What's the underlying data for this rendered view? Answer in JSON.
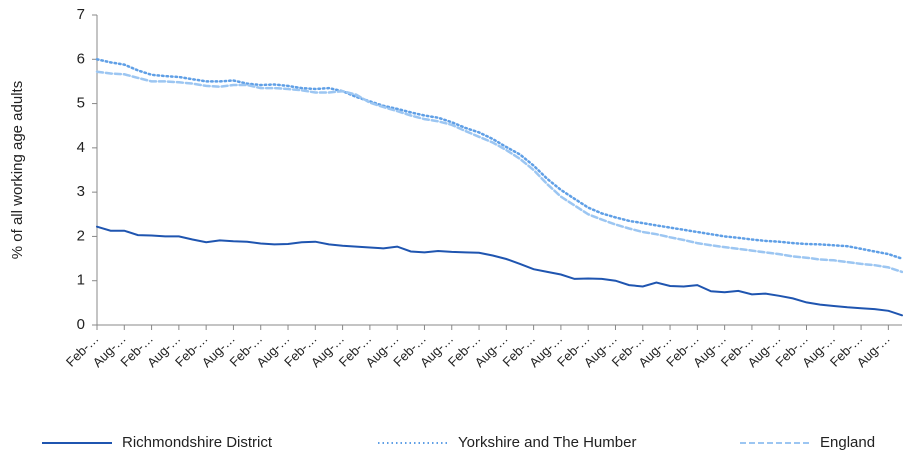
{
  "chart_data": {
    "type": "line",
    "y_label": "% of all working age adults",
    "categories": [
      "Feb-…",
      null,
      "Aug-…",
      null,
      "Feb-…",
      null,
      "Aug-…",
      null,
      "Feb-…",
      null,
      "Aug-…",
      null,
      "Feb-…",
      null,
      "Aug-…",
      null,
      "Feb-…",
      null,
      "Aug-…",
      null,
      "Feb-…",
      null,
      "Aug-…",
      null,
      "Feb-…",
      null,
      "Aug-…",
      null,
      "Feb-…",
      null,
      "Aug-…",
      null,
      "Feb-…",
      null,
      "Aug-…",
      null,
      "Feb-…",
      null,
      "Aug-…",
      null,
      "Feb-…",
      null,
      "Aug-…",
      null,
      "Feb-…",
      null,
      "Aug-…",
      null,
      "Feb-…",
      null,
      "Aug-…",
      null,
      "Feb-…",
      null,
      "Aug-…",
      null,
      "Feb-…",
      null,
      "Aug-…",
      null
    ],
    "series": [
      {
        "name": "Richmondshire District",
        "color": "#1f55b0",
        "style": "solid",
        "values": [
          2.22,
          2.13,
          2.13,
          2.03,
          2.02,
          2.0,
          2.0,
          1.93,
          1.87,
          1.91,
          1.89,
          1.88,
          1.84,
          1.82,
          1.83,
          1.87,
          1.88,
          1.82,
          1.79,
          1.77,
          1.75,
          1.73,
          1.77,
          1.66,
          1.64,
          1.67,
          1.65,
          1.64,
          1.63,
          1.57,
          1.49,
          1.38,
          1.26,
          1.2,
          1.14,
          1.04,
          1.05,
          1.04,
          1.0,
          0.9,
          0.87,
          0.96,
          0.88,
          0.87,
          0.9,
          0.76,
          0.74,
          0.77,
          0.69,
          0.71,
          0.66,
          0.6,
          0.51,
          0.46,
          0.43,
          0.4,
          0.38,
          0.36,
          0.32,
          0.22
        ]
      },
      {
        "name": "Yorkshire and The Humber",
        "color": "#5f9fe6",
        "style": "dotted",
        "values": [
          6.0,
          5.93,
          5.88,
          5.75,
          5.65,
          5.62,
          5.6,
          5.55,
          5.5,
          5.5,
          5.52,
          5.45,
          5.42,
          5.43,
          5.4,
          5.35,
          5.33,
          5.35,
          5.28,
          5.15,
          5.05,
          4.95,
          4.88,
          4.8,
          4.73,
          4.68,
          4.58,
          4.45,
          4.35,
          4.2,
          4.02,
          3.85,
          3.6,
          3.3,
          3.05,
          2.85,
          2.65,
          2.52,
          2.43,
          2.35,
          2.3,
          2.25,
          2.2,
          2.15,
          2.1,
          2.05,
          2.0,
          1.97,
          1.93,
          1.9,
          1.88,
          1.85,
          1.83,
          1.82,
          1.8,
          1.78,
          1.72,
          1.66,
          1.6,
          1.5
        ]
      },
      {
        "name": "England",
        "color": "#9cc6f2",
        "style": "dashed",
        "values": [
          5.72,
          5.68,
          5.66,
          5.58,
          5.5,
          5.5,
          5.48,
          5.45,
          5.4,
          5.38,
          5.42,
          5.42,
          5.35,
          5.35,
          5.33,
          5.3,
          5.25,
          5.25,
          5.28,
          5.2,
          5.02,
          4.92,
          4.83,
          4.73,
          4.65,
          4.6,
          4.52,
          4.38,
          4.25,
          4.12,
          3.95,
          3.75,
          3.5,
          3.18,
          2.9,
          2.7,
          2.5,
          2.38,
          2.27,
          2.18,
          2.1,
          2.05,
          1.98,
          1.92,
          1.85,
          1.8,
          1.76,
          1.72,
          1.68,
          1.64,
          1.6,
          1.55,
          1.52,
          1.48,
          1.46,
          1.42,
          1.38,
          1.35,
          1.3,
          1.2
        ]
      }
    ],
    "ylim": [
      0,
      7
    ],
    "yticks": [
      0,
      1,
      2,
      3,
      4,
      5,
      6,
      7
    ],
    "grid": false,
    "legend": "bottom"
  }
}
